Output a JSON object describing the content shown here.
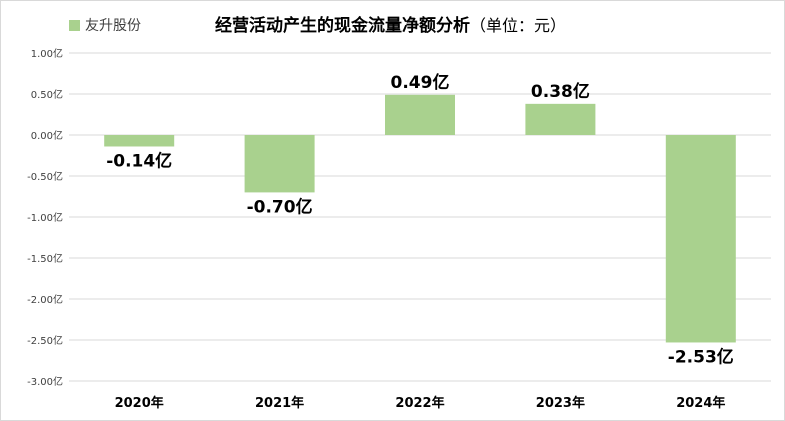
{
  "chart_data": {
    "type": "bar",
    "title": "经营活动产生的现金流量净额分析",
    "title_unit": "（单位：元）",
    "legend": {
      "label": "友升股份",
      "position": "top-left"
    },
    "categories": [
      "2020年",
      "2021年",
      "2022年",
      "2023年",
      "2024年"
    ],
    "series": [
      {
        "name": "友升股份",
        "values": [
          -0.14,
          -0.7,
          0.49,
          0.38,
          -2.53
        ],
        "data_labels": [
          "-0.14亿",
          "-0.70亿",
          "0.49亿",
          "0.38亿",
          "-2.53亿"
        ],
        "color": "#a9d18e"
      }
    ],
    "ylim": [
      -3.0,
      1.0
    ],
    "yticks": [
      1.0,
      0.5,
      0.0,
      -0.5,
      -1.0,
      -1.5,
      -2.0,
      -2.5,
      -3.0
    ],
    "ytick_labels": [
      "1.00亿",
      "0.50亿",
      "0.00亿",
      "-0.50亿",
      "-1.00亿",
      "-1.50亿",
      "-2.00亿",
      "-2.50亿",
      "-3.00亿"
    ],
    "xlabel": "",
    "ylabel": "",
    "grid": true,
    "colors": {
      "grid": "#d9d9d9",
      "bar": "#a9d18e"
    }
  }
}
